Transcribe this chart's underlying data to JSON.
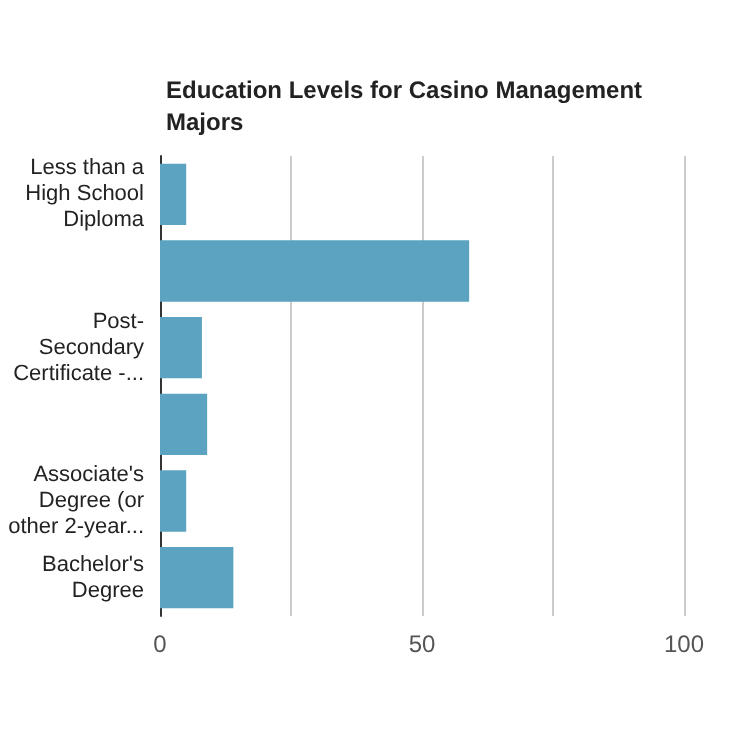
{
  "chart_data": {
    "type": "bar",
    "orientation": "horizontal",
    "title": "Education Levels for Casino Management Majors",
    "categories": [
      "Less than a High School Diploma",
      null,
      "Post-Secondary Certificate -...",
      null,
      "Associate's Degree (or other 2-year...",
      "Bachelor's Degree"
    ],
    "values": [
      5,
      59,
      8,
      9,
      5,
      14
    ],
    "color": "#5ba3c0",
    "xlim": [
      0,
      100
    ],
    "xticks": [
      0,
      {
        "value": 25,
        "label": null
      },
      50,
      {
        "value": 75,
        "label": null
      },
      100
    ],
    "grid": "x"
  }
}
